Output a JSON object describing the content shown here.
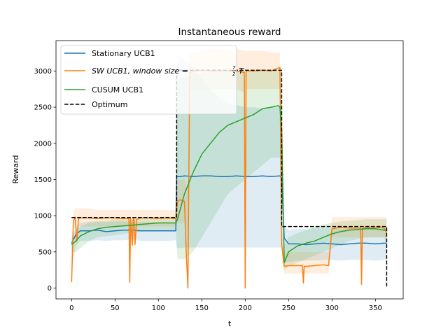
{
  "chart_data": {
    "type": "line",
    "title": "Instantaneous reward",
    "xlabel": "t",
    "ylabel": "Reward",
    "xlim": [
      -18,
      382
    ],
    "ylim": [
      -150,
      3420
    ],
    "xticks": [
      0,
      50,
      100,
      150,
      200,
      250,
      300,
      350
    ],
    "yticks": [
      0,
      500,
      1000,
      1500,
      2000,
      2500,
      3000
    ],
    "legend_position": "top-left",
    "grid": false,
    "series": [
      {
        "name": "Stationary UCB1",
        "color": "#1f77b4",
        "style": "solid",
        "x": [
          0,
          5,
          10,
          20,
          30,
          40,
          50,
          60,
          70,
          80,
          90,
          100,
          110,
          120,
          121,
          125,
          130,
          140,
          150,
          160,
          170,
          180,
          190,
          200,
          210,
          220,
          230,
          240,
          242,
          245,
          250,
          260,
          270,
          280,
          290,
          300,
          310,
          320,
          330,
          340,
          350,
          360,
          363
        ],
        "y": [
          620,
          740,
          790,
          790,
          800,
          780,
          790,
          800,
          800,
          790,
          790,
          790,
          790,
          790,
          1540,
          1540,
          1550,
          1540,
          1550,
          1550,
          1540,
          1540,
          1550,
          1540,
          1540,
          1550,
          1540,
          1550,
          1520,
          690,
          610,
          610,
          600,
          610,
          620,
          610,
          600,
          610,
          620,
          620,
          610,
          620,
          620
        ],
        "band_upper": [
          700,
          850,
          900,
          920,
          920,
          910,
          920,
          920,
          920,
          910,
          910,
          910,
          910,
          900,
          3100,
          3200,
          3150,
          3050,
          2900,
          2750,
          2620,
          2550,
          2530,
          2500,
          2500,
          2480,
          2500,
          2500,
          2500,
          850,
          800,
          820,
          820,
          830,
          830,
          820,
          820,
          830,
          830,
          830,
          820,
          820,
          820
        ],
        "band_lower": [
          200,
          600,
          650,
          650,
          660,
          650,
          660,
          660,
          670,
          650,
          650,
          650,
          650,
          660,
          560,
          550,
          560,
          560,
          560,
          560,
          560,
          560,
          560,
          560,
          560,
          560,
          560,
          560,
          560,
          360,
          360,
          380,
          380,
          380,
          390,
          390,
          380,
          390,
          390,
          390,
          380,
          390,
          390
        ]
      },
      {
        "name": "SW UCB1, window size = 7/2 T",
        "color": "#ff7f0e",
        "style": "solid",
        "x": [
          0,
          2,
          4,
          6,
          8,
          10,
          20,
          30,
          40,
          50,
          60,
          66,
          67,
          68,
          70,
          71,
          72,
          73,
          75,
          80,
          90,
          100,
          110,
          120,
          122,
          125,
          130,
          132,
          134,
          136,
          140,
          150,
          160,
          170,
          180,
          190,
          199,
          200,
          201,
          202,
          204,
          210,
          220,
          230,
          240,
          242,
          245,
          250,
          260,
          266,
          267,
          268,
          270,
          280,
          290,
          296,
          300,
          310,
          320,
          333,
          334,
          335,
          336,
          340,
          350,
          360,
          363
        ],
        "y": [
          80,
          920,
          980,
          650,
          960,
          970,
          970,
          960,
          970,
          970,
          960,
          960,
          80,
          960,
          590,
          960,
          940,
          600,
          950,
          970,
          970,
          960,
          970,
          960,
          1200,
          1220,
          1200,
          500,
          0,
          2980,
          3000,
          3010,
          3000,
          3000,
          3000,
          3000,
          2980,
          0,
          2980,
          3010,
          3000,
          3000,
          3010,
          3000,
          3050,
          600,
          300,
          310,
          310,
          310,
          70,
          300,
          300,
          310,
          320,
          310,
          820,
          840,
          830,
          830,
          50,
          820,
          830,
          840,
          840,
          830,
          760
        ],
        "band_upper": [
          300,
          1050,
          1100,
          1100,
          1100,
          1100,
          1100,
          1080,
          1080,
          1080,
          1080,
          1080,
          1080,
          1080,
          1080,
          1080,
          1080,
          1080,
          1080,
          1080,
          1080,
          1080,
          1080,
          1080,
          1500,
          1500,
          1500,
          1400,
          1400,
          3250,
          3250,
          3280,
          3300,
          3300,
          3280,
          3300,
          3280,
          3280,
          3280,
          3280,
          3280,
          3280,
          3280,
          3260,
          3250,
          850,
          500,
          500,
          500,
          500,
          500,
          500,
          500,
          500,
          500,
          500,
          980,
          980,
          980,
          980,
          980,
          980,
          980,
          980,
          980,
          980,
          980
        ],
        "band_lower": [
          0,
          800,
          850,
          500,
          850,
          850,
          850,
          850,
          850,
          850,
          850,
          850,
          0,
          850,
          450,
          850,
          850,
          450,
          850,
          850,
          850,
          850,
          850,
          850,
          900,
          900,
          900,
          300,
          0,
          2700,
          2750,
          2750,
          2750,
          2750,
          2750,
          2750,
          2700,
          0,
          2700,
          2750,
          2750,
          2750,
          2750,
          2750,
          2750,
          400,
          200,
          200,
          200,
          200,
          0,
          200,
          200,
          200,
          200,
          200,
          700,
          700,
          700,
          700,
          0,
          700,
          700,
          700,
          700,
          700,
          600
        ]
      },
      {
        "name": "CUSUM UCB1",
        "color": "#2ca02c",
        "style": "solid",
        "x": [
          0,
          5,
          10,
          20,
          30,
          40,
          50,
          60,
          70,
          80,
          90,
          100,
          110,
          120,
          122,
          130,
          140,
          150,
          160,
          170,
          180,
          190,
          200,
          210,
          220,
          230,
          238,
          240,
          242,
          245,
          250,
          260,
          270,
          280,
          290,
          300,
          310,
          320,
          330,
          340,
          350,
          360,
          363
        ],
        "y": [
          600,
          650,
          720,
          780,
          820,
          840,
          850,
          860,
          870,
          880,
          890,
          900,
          900,
          900,
          950,
          1300,
          1600,
          1850,
          2000,
          2150,
          2250,
          2300,
          2350,
          2400,
          2480,
          2500,
          2520,
          2500,
          2200,
          350,
          500,
          580,
          620,
          650,
          700,
          750,
          780,
          800,
          810,
          820,
          820,
          800,
          800
        ],
        "band_upper": [
          700,
          800,
          850,
          900,
          920,
          930,
          950,
          960,
          970,
          970,
          980,
          980,
          990,
          980,
          2900,
          2900,
          2950,
          2980,
          2980,
          2990,
          3000,
          3000,
          3000,
          3000,
          3000,
          3000,
          3000,
          3000,
          3000,
          600,
          700,
          760,
          800,
          840,
          880,
          900,
          920,
          930,
          940,
          950,
          950,
          950,
          950
        ],
        "band_lower": [
          500,
          500,
          550,
          650,
          700,
          720,
          730,
          750,
          760,
          780,
          790,
          800,
          800,
          800,
          400,
          400,
          500,
          700,
          900,
          1100,
          1300,
          1400,
          1500,
          1600,
          1700,
          1800,
          1800,
          1800,
          1500,
          250,
          300,
          350,
          400,
          450,
          500,
          550,
          600,
          650,
          680,
          700,
          700,
          700,
          700
        ]
      },
      {
        "name": "Optimum",
        "color": "#000000",
        "style": "dashed",
        "x": [
          0,
          121,
          121,
          242,
          242,
          363,
          363
        ],
        "y": [
          975,
          975,
          3010,
          3010,
          850,
          850,
          0
        ]
      }
    ]
  }
}
